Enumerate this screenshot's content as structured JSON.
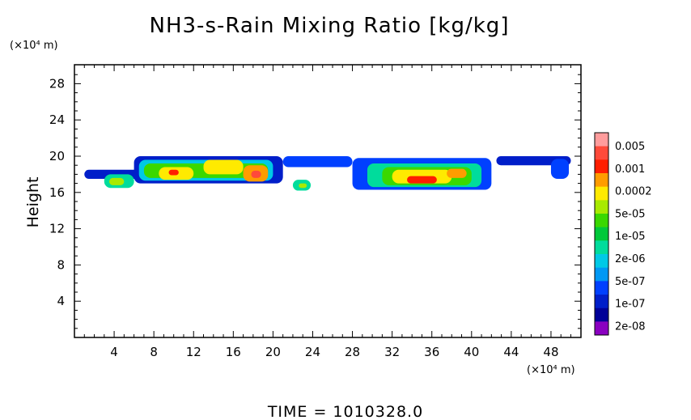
{
  "chart_data": {
    "type": "heatmap",
    "title": "NH3-s-Rain Mixing Ratio [kg/kg]",
    "ylabel": "Height",
    "y_unit": "(×10⁴ m)",
    "x_unit": "(×10⁴ m)",
    "xlim": [
      0,
      51
    ],
    "ylim": [
      0,
      30
    ],
    "x_ticks": [
      4,
      8,
      12,
      16,
      20,
      24,
      28,
      32,
      36,
      40,
      44,
      48
    ],
    "y_ticks": [
      4,
      8,
      12,
      16,
      20,
      24,
      28
    ],
    "footer": "TIME  =  1010328.0",
    "colorbar": {
      "labels": [
        "0.005",
        "0.001",
        "0.0002",
        "5e-05",
        "1e-05",
        "2e-06",
        "5e-07",
        "1e-07",
        "2e-08"
      ],
      "colors": [
        "#ff9c9c",
        "#ff4a3a",
        "#ff1e00",
        "#ff9c00",
        "#ffea00",
        "#a8ea00",
        "#3ad800",
        "#00c93a",
        "#00dc9c",
        "#00c9e6",
        "#0098f4",
        "#0040ff",
        "#001ec9",
        "#000098",
        "#8a00c0"
      ]
    },
    "regions": [
      {
        "x0": 1.0,
        "x1": 6.5,
        "y0": 17.5,
        "y1": 18.5,
        "level": 2
      },
      {
        "x0": 3.0,
        "x1": 6.0,
        "y0": 16.5,
        "y1": 18.0,
        "level": 6
      },
      {
        "x0": 3.5,
        "x1": 5.0,
        "y0": 16.8,
        "y1": 17.6,
        "level": 9
      },
      {
        "x0": 6.0,
        "x1": 21.0,
        "y0": 17.0,
        "y1": 20.0,
        "level": 2
      },
      {
        "x0": 6.5,
        "x1": 20.0,
        "y0": 17.3,
        "y1": 19.6,
        "level": 5
      },
      {
        "x0": 7.0,
        "x1": 19.5,
        "y0": 17.6,
        "y1": 19.2,
        "level": 8
      },
      {
        "x0": 8.5,
        "x1": 12.0,
        "y0": 17.4,
        "y1": 18.8,
        "level": 10
      },
      {
        "x0": 13.0,
        "x1": 17.0,
        "y0": 18.0,
        "y1": 19.6,
        "level": 10
      },
      {
        "x0": 17.0,
        "x1": 19.5,
        "y0": 17.2,
        "y1": 19.0,
        "level": 11
      },
      {
        "x0": 17.8,
        "x1": 18.8,
        "y0": 17.6,
        "y1": 18.4,
        "level": 13
      },
      {
        "x0": 9.5,
        "x1": 10.5,
        "y0": 17.9,
        "y1": 18.5,
        "level": 12
      },
      {
        "x0": 21.0,
        "x1": 28.0,
        "y0": 18.8,
        "y1": 20.0,
        "level": 3
      },
      {
        "x0": 22.0,
        "x1": 23.8,
        "y0": 16.2,
        "y1": 17.4,
        "level": 6
      },
      {
        "x0": 22.6,
        "x1": 23.4,
        "y0": 16.5,
        "y1": 17.0,
        "level": 9
      },
      {
        "x0": 28.0,
        "x1": 42.0,
        "y0": 16.3,
        "y1": 19.8,
        "level": 3
      },
      {
        "x0": 29.5,
        "x1": 41.0,
        "y0": 16.6,
        "y1": 19.2,
        "level": 6
      },
      {
        "x0": 31.0,
        "x1": 40.0,
        "y0": 16.8,
        "y1": 18.8,
        "level": 8
      },
      {
        "x0": 32.0,
        "x1": 38.0,
        "y0": 17.0,
        "y1": 18.5,
        "level": 10
      },
      {
        "x0": 33.5,
        "x1": 36.5,
        "y0": 17.0,
        "y1": 17.8,
        "level": 12
      },
      {
        "x0": 37.5,
        "x1": 39.5,
        "y0": 17.6,
        "y1": 18.6,
        "level": 11
      },
      {
        "x0": 42.5,
        "x1": 50.0,
        "y0": 19.0,
        "y1": 20.0,
        "level": 2
      },
      {
        "x0": 48.0,
        "x1": 49.8,
        "y0": 17.5,
        "y1": 19.7,
        "level": 3
      }
    ]
  }
}
